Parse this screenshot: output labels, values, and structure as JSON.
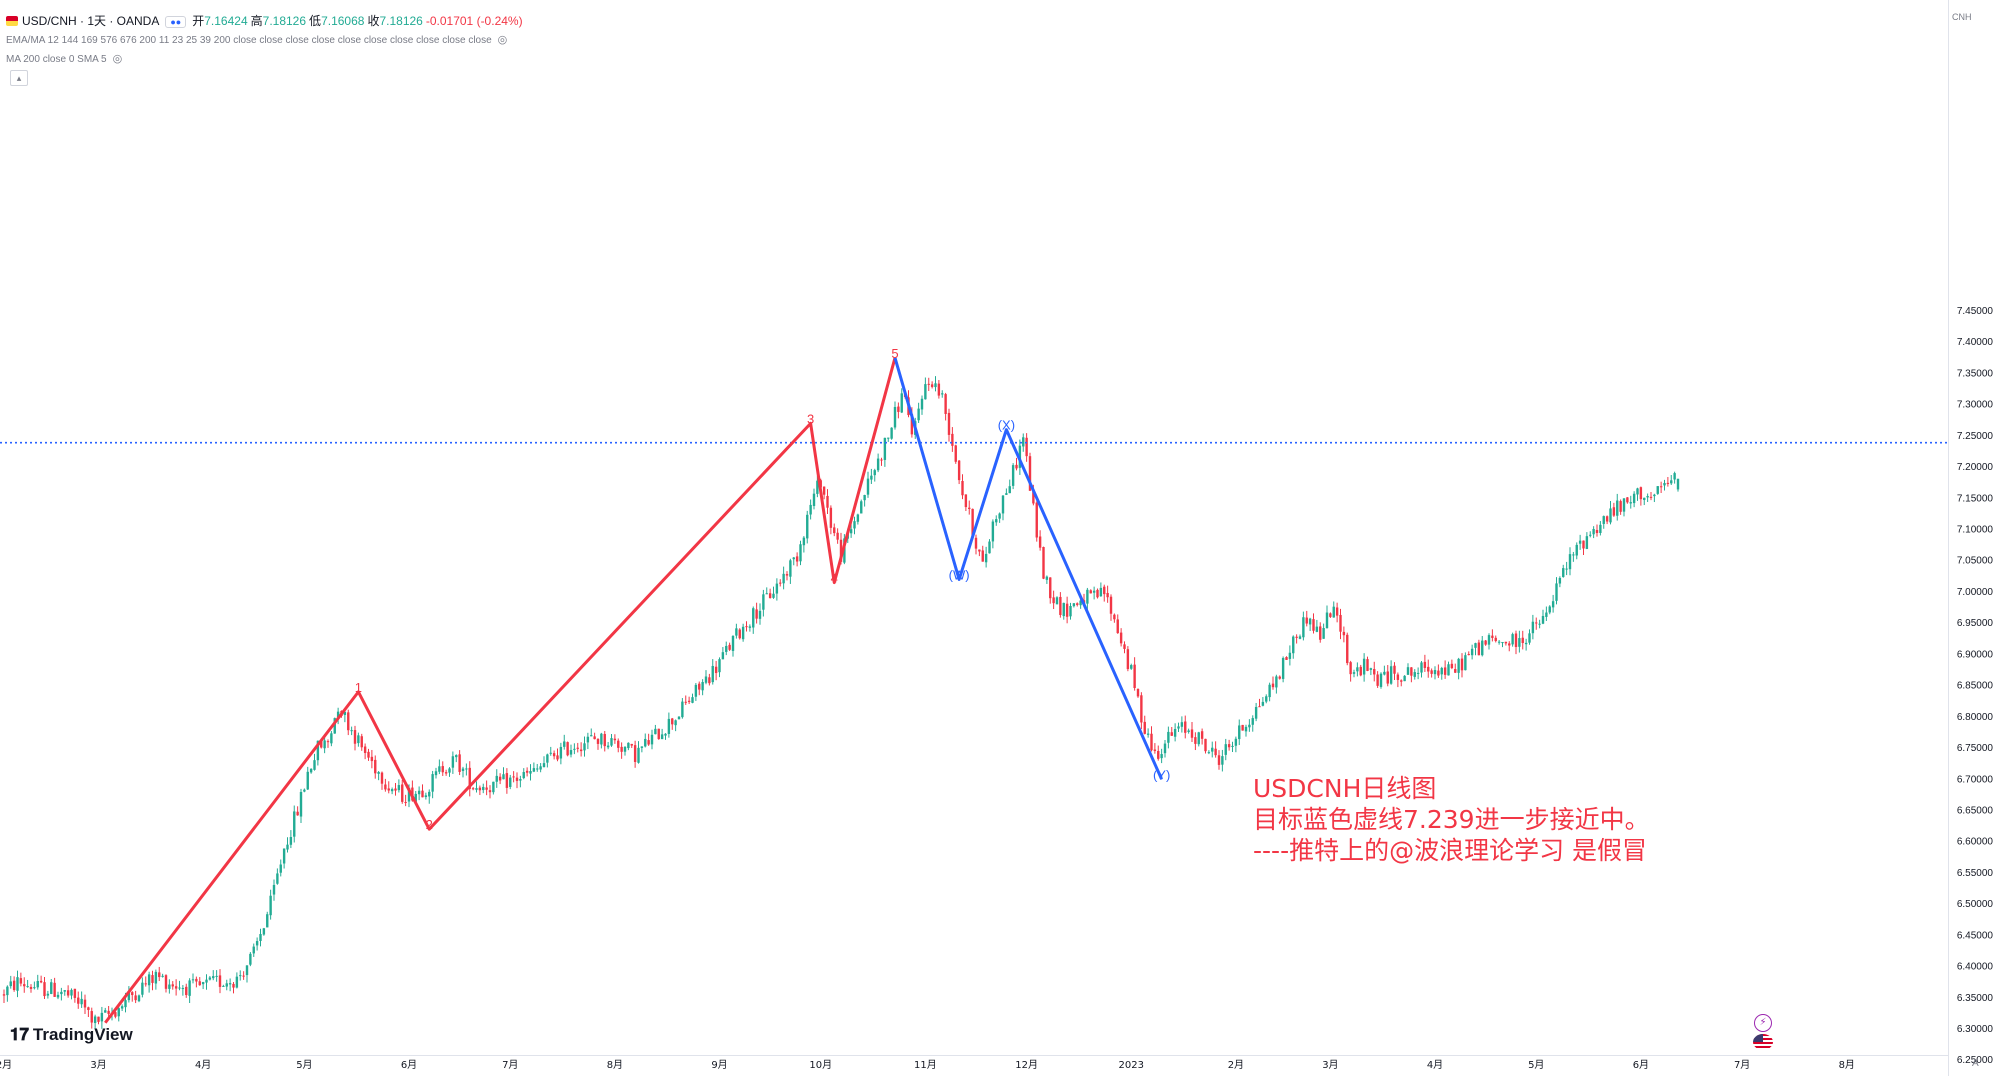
{
  "header": {
    "symbol": "USD/CNH · 1天 · OANDA",
    "ohlc": [
      {
        "label": "开",
        "value": "7.16424"
      },
      {
        "label": "高",
        "value": "7.18126"
      },
      {
        "label": "低",
        "value": "7.16068"
      },
      {
        "label": "收",
        "value": "7.18126"
      }
    ],
    "change": "-0.01701 (-0.24%)",
    "indicator1": "EMA/MA 12 144 169 576 676 200 11 23 25 39 200 close close close close close close close close close close",
    "indicator2": "MA 200 close 0 SMA 5"
  },
  "currency_label": "CNH",
  "branding": {
    "logo_text": "TradingView"
  },
  "annotation": {
    "line1": "USDCNH日线图",
    "line2": "目标蓝色虚线7.239进一步接近中。",
    "line3": "----推特上的@波浪理论学习 是假冒"
  },
  "scale_button": "A",
  "colors": {
    "up": "#22ab94",
    "down": "#f23645",
    "wave_red": "#f23645",
    "wave_blue": "#2962ff",
    "target": "#2962ff"
  },
  "chart_data": {
    "type": "candlestick",
    "symbol": "USD/CNH",
    "timeframe": "1D",
    "y_axis": {
      "ticks": [
        7.45,
        7.4,
        7.35,
        7.3,
        7.25,
        7.2,
        7.15,
        7.1,
        7.05,
        7.0,
        6.95,
        6.9,
        6.85,
        6.8,
        6.75,
        6.7,
        6.65,
        6.6,
        6.55,
        6.5,
        6.45,
        6.4,
        6.35,
        6.3,
        6.25
      ],
      "tick_labels": [
        "7.45000",
        "7.40000",
        "7.35000",
        "7.30000",
        "7.25000",
        "7.20000",
        "7.15000",
        "7.10000",
        "7.05000",
        "7.00000",
        "6.95000",
        "6.90000",
        "6.85000",
        "6.80000",
        "6.75000",
        "6.70000",
        "6.65000",
        "6.60000",
        "6.55000",
        "6.50000",
        "6.45000",
        "6.40000",
        "6.35000",
        "6.30000",
        "6.25000"
      ],
      "range": [
        6.23,
        7.497
      ]
    },
    "x_axis": {
      "labels": [
        "2月",
        "3月",
        "4月",
        "5月",
        "6月",
        "7月",
        "8月",
        "9月",
        "10月",
        "11月",
        "12月",
        "2023",
        "2月",
        "3月",
        "4月",
        "5月",
        "6月",
        "7月",
        "8月"
      ],
      "bar_positions": [
        0,
        28,
        59,
        89,
        120,
        150,
        181,
        212,
        242,
        273,
        303,
        334,
        365,
        393,
        424,
        454,
        485,
        515,
        546
      ],
      "total_bars": 562
    },
    "price_path": [
      [
        0,
        6.355
      ],
      [
        5,
        6.375
      ],
      [
        12,
        6.365
      ],
      [
        18,
        6.36
      ],
      [
        24,
        6.34
      ],
      [
        28,
        6.31
      ],
      [
        34,
        6.33
      ],
      [
        40,
        6.36
      ],
      [
        46,
        6.385
      ],
      [
        52,
        6.37
      ],
      [
        58,
        6.365
      ],
      [
        64,
        6.375
      ],
      [
        70,
        6.38
      ],
      [
        75,
        6.42
      ],
      [
        80,
        6.5
      ],
      [
        84,
        6.59
      ],
      [
        88,
        6.65
      ],
      [
        91,
        6.71
      ],
      [
        94,
        6.75
      ],
      [
        97,
        6.76
      ],
      [
        100,
        6.82
      ],
      [
        103,
        6.79
      ],
      [
        107,
        6.75
      ],
      [
        111,
        6.72
      ],
      [
        115,
        6.69
      ],
      [
        119,
        6.675
      ],
      [
        123,
        6.68
      ],
      [
        127,
        6.69
      ],
      [
        131,
        6.72
      ],
      [
        135,
        6.73
      ],
      [
        140,
        6.69
      ],
      [
        146,
        6.69
      ],
      [
        152,
        6.7
      ],
      [
        158,
        6.71
      ],
      [
        164,
        6.74
      ],
      [
        170,
        6.755
      ],
      [
        176,
        6.765
      ],
      [
        182,
        6.76
      ],
      [
        188,
        6.74
      ],
      [
        194,
        6.77
      ],
      [
        200,
        6.8
      ],
      [
        206,
        6.84
      ],
      [
        212,
        6.88
      ],
      [
        218,
        6.93
      ],
      [
        224,
        6.97
      ],
      [
        230,
        7.01
      ],
      [
        236,
        7.06
      ],
      [
        240,
        7.14
      ],
      [
        243,
        7.18
      ],
      [
        246,
        7.11
      ],
      [
        249,
        7.06
      ],
      [
        252,
        7.1
      ],
      [
        256,
        7.16
      ],
      [
        260,
        7.21
      ],
      [
        263,
        7.25
      ],
      [
        266,
        7.3
      ],
      [
        268,
        7.32
      ],
      [
        270,
        7.24
      ],
      [
        273,
        7.32
      ],
      [
        276,
        7.34
      ],
      [
        279,
        7.31
      ],
      [
        282,
        7.24
      ],
      [
        285,
        7.16
      ],
      [
        288,
        7.1
      ],
      [
        291,
        7.04
      ],
      [
        294,
        7.11
      ],
      [
        297,
        7.15
      ],
      [
        300,
        7.19
      ],
      [
        303,
        7.25
      ],
      [
        306,
        7.13
      ],
      [
        309,
        7.03
      ],
      [
        312,
        6.99
      ],
      [
        315,
        6.97
      ],
      [
        318,
        6.98
      ],
      [
        321,
        6.99
      ],
      [
        324,
        6.99
      ],
      [
        327,
        7.0
      ],
      [
        331,
        6.94
      ],
      [
        335,
        6.87
      ],
      [
        338,
        6.8
      ],
      [
        342,
        6.74
      ],
      [
        345,
        6.76
      ],
      [
        349,
        6.78
      ],
      [
        352,
        6.78
      ],
      [
        355,
        6.765
      ],
      [
        358,
        6.745
      ],
      [
        361,
        6.735
      ],
      [
        365,
        6.76
      ],
      [
        369,
        6.79
      ],
      [
        373,
        6.82
      ],
      [
        378,
        6.86
      ],
      [
        383,
        6.92
      ],
      [
        387,
        6.96
      ],
      [
        391,
        6.93
      ],
      [
        394,
        6.97
      ],
      [
        397,
        6.95
      ],
      [
        400,
        6.87
      ],
      [
        404,
        6.88
      ],
      [
        408,
        6.86
      ],
      [
        413,
        6.87
      ],
      [
        418,
        6.87
      ],
      [
        424,
        6.88
      ],
      [
        430,
        6.87
      ],
      [
        435,
        6.9
      ],
      [
        440,
        6.92
      ],
      [
        445,
        6.92
      ],
      [
        450,
        6.92
      ],
      [
        454,
        6.94
      ],
      [
        458,
        6.96
      ],
      [
        462,
        7.02
      ],
      [
        466,
        7.06
      ],
      [
        470,
        7.09
      ],
      [
        474,
        7.11
      ],
      [
        478,
        7.13
      ],
      [
        482,
        7.14
      ],
      [
        486,
        7.16
      ],
      [
        490,
        7.15
      ],
      [
        493,
        7.17
      ],
      [
        496,
        7.18
      ]
    ],
    "last_bar": {
      "open": 7.16424,
      "high": 7.18126,
      "low": 7.16068,
      "close": 7.18126
    },
    "horizontal_lines": [
      {
        "price": 7.239,
        "label": "7.23900",
        "style": "dotted",
        "color": "#2962ff"
      }
    ],
    "wave_labels": [
      {
        "text": "1",
        "bar": 105,
        "price": 6.84,
        "color": "red"
      },
      {
        "text": "2",
        "bar": 126,
        "price": 6.62,
        "color": "red"
      },
      {
        "text": "3",
        "bar": 239,
        "price": 7.27,
        "color": "red"
      },
      {
        "text": "4",
        "bar": 246,
        "price": 7.015,
        "color": "red"
      },
      {
        "text": "5",
        "bar": 264,
        "price": 7.375,
        "color": "red"
      },
      {
        "text": "(W)",
        "bar": 283,
        "price": 7.02,
        "color": "blue"
      },
      {
        "text": "(X)",
        "bar": 297,
        "price": 7.26,
        "color": "blue"
      },
      {
        "text": "(Y)",
        "bar": 343,
        "price": 6.7,
        "color": "blue"
      }
    ],
    "wave_lines": [
      {
        "color": "red",
        "points": [
          [
            30,
            6.31
          ],
          [
            105,
            6.84
          ],
          [
            126,
            6.62
          ],
          [
            239,
            7.27
          ],
          [
            246,
            7.015
          ],
          [
            264,
            7.375
          ]
        ]
      },
      {
        "color": "blue",
        "points": [
          [
            264,
            7.375
          ],
          [
            283,
            7.02
          ],
          [
            297,
            7.26
          ],
          [
            343,
            6.7
          ]
        ]
      }
    ]
  }
}
